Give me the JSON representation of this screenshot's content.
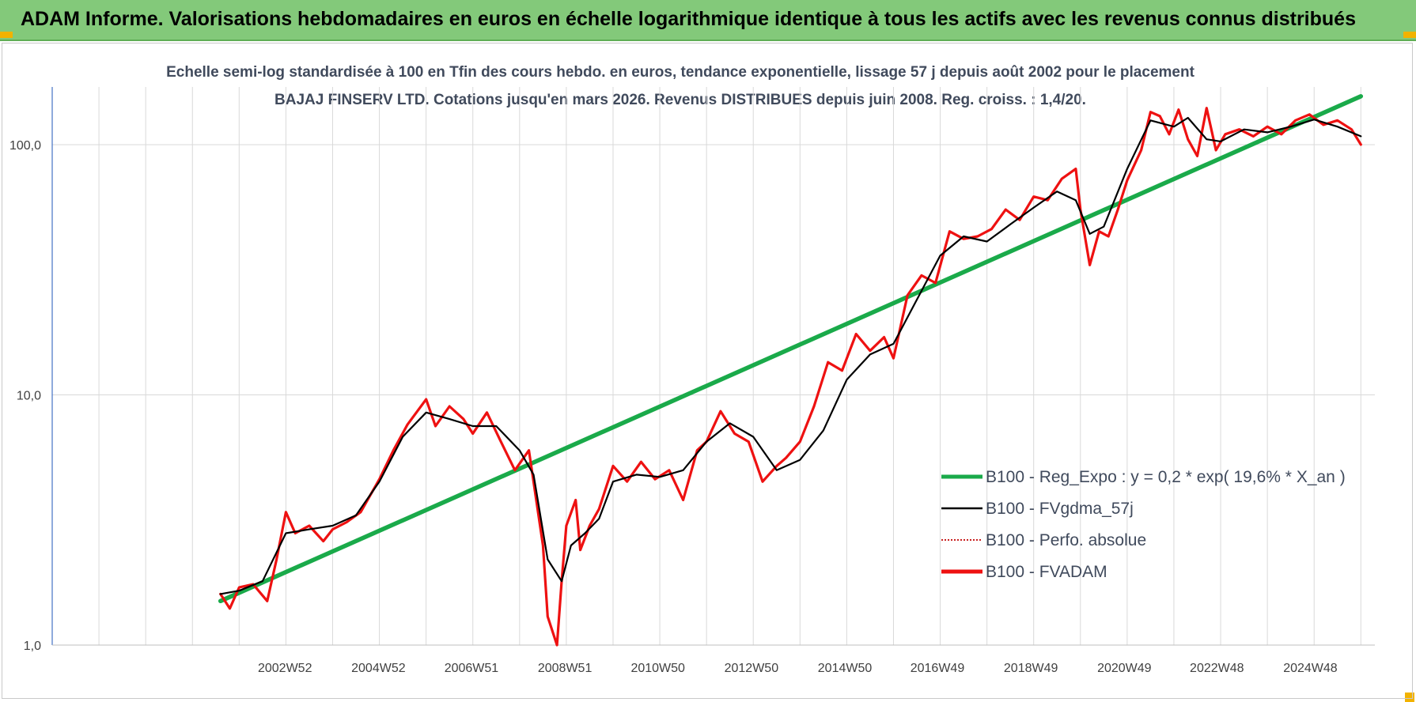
{
  "banner": {
    "title": "ADAM Informe. Valorisations hebdomadaires en euros en échelle logarithmique identique à tous les actifs avec les revenus connus distribués"
  },
  "colors": {
    "banner_bg": "#83c97a",
    "corner_accent": "#f2b200",
    "regression": "#1aaa4a",
    "smoothed": "#000000",
    "absolute_perf": "#c00000",
    "fvadam": "#ee1111",
    "grid": "#d9d9d9",
    "y_axis": "#4472c4"
  },
  "chart_data": {
    "type": "line",
    "title": "Echelle semi-log standardisée à 100 en Tfin des cours hebdo. en euros, tendance exponentielle, lissage 57 j depuis août 2002 pour le placement BAJAJ FINSERV  LTD. Cotations jusqu'en mars 2026. Revenus DISTRIBUES depuis juin 2008. Reg. croiss. : 1,4/20.",
    "y_scale": "log",
    "ylim": [
      1,
      170
    ],
    "xlim": [
      1998.0,
      2026.3
    ],
    "y_ticks": [
      {
        "value": 1,
        "label": "1,0"
      },
      {
        "value": 10,
        "label": "10,0"
      },
      {
        "value": 100,
        "label": "100,0"
      }
    ],
    "x_ticks": [
      {
        "value": 2002.98,
        "label": "2002W52"
      },
      {
        "value": 2004.98,
        "label": "2004W52"
      },
      {
        "value": 2006.97,
        "label": "2006W51"
      },
      {
        "value": 2008.97,
        "label": "2008W51"
      },
      {
        "value": 2010.96,
        "label": "2010W50"
      },
      {
        "value": 2012.96,
        "label": "2012W50"
      },
      {
        "value": 2014.96,
        "label": "2014W50"
      },
      {
        "value": 2016.94,
        "label": "2016W49"
      },
      {
        "value": 2018.94,
        "label": "2018W49"
      },
      {
        "value": 2020.94,
        "label": "2020W49"
      },
      {
        "value": 2022.92,
        "label": "2022W48"
      },
      {
        "value": 2024.92,
        "label": "2024W48"
      }
    ],
    "grid": true,
    "legend_position": "right",
    "series": [
      {
        "name": "B100 - Reg_Expo : y = 0,2 * exp( 19,6% *  X_an )",
        "key": "regression",
        "x": [
          2001.6,
          2026.0
        ],
        "y": [
          1.5,
          156
        ]
      },
      {
        "name": "B100 - FVgdma_57j",
        "key": "smoothed",
        "x": [
          2001.6,
          2002.0,
          2002.5,
          2003.0,
          2003.5,
          2004.0,
          2004.5,
          2005.0,
          2005.5,
          2006.0,
          2006.5,
          2007.0,
          2007.5,
          2008.0,
          2008.3,
          2008.6,
          2008.9,
          2009.1,
          2009.4,
          2009.7,
          2010.0,
          2010.5,
          2011.0,
          2011.5,
          2012.0,
          2012.5,
          2013.0,
          2013.5,
          2014.0,
          2014.5,
          2015.0,
          2015.5,
          2016.0,
          2016.5,
          2017.0,
          2017.5,
          2018.0,
          2018.5,
          2019.0,
          2019.5,
          2019.9,
          2020.2,
          2020.5,
          2021.0,
          2021.5,
          2022.0,
          2022.3,
          2022.7,
          2023.0,
          2023.5,
          2024.0,
          2024.5,
          2025.0,
          2025.5,
          2026.0
        ],
        "y": [
          1.6,
          1.65,
          1.8,
          2.8,
          2.9,
          3.0,
          3.3,
          4.5,
          6.8,
          8.5,
          8.0,
          7.5,
          7.5,
          6.0,
          4.8,
          2.2,
          1.8,
          2.5,
          2.8,
          3.2,
          4.5,
          4.8,
          4.7,
          5.0,
          6.5,
          7.7,
          6.8,
          5.0,
          5.5,
          7.2,
          11.5,
          14.5,
          16.0,
          24.0,
          36.0,
          43.0,
          41.0,
          48.0,
          56.0,
          65.0,
          60.0,
          44.0,
          47.0,
          80.0,
          125.0,
          118.0,
          128.0,
          105.0,
          103.0,
          115.0,
          112.0,
          118.0,
          126.0,
          118.0,
          108.0
        ]
      },
      {
        "name": "B100 - Perfo. absolue",
        "key": "absolute_perf",
        "x": [],
        "y": []
      },
      {
        "name": "B100 - FVADAM",
        "key": "fvadam",
        "x": [
          2001.6,
          2001.8,
          2002.0,
          2002.3,
          2002.6,
          2002.8,
          2003.0,
          2003.2,
          2003.5,
          2003.8,
          2004.0,
          2004.3,
          2004.6,
          2005.0,
          2005.3,
          2005.6,
          2006.0,
          2006.2,
          2006.5,
          2006.8,
          2007.0,
          2007.3,
          2007.6,
          2007.9,
          2008.2,
          2008.5,
          2008.6,
          2008.8,
          2008.9,
          2009.0,
          2009.2,
          2009.3,
          2009.5,
          2009.7,
          2010.0,
          2010.3,
          2010.6,
          2010.9,
          2011.2,
          2011.5,
          2011.8,
          2012.0,
          2012.3,
          2012.6,
          2012.9,
          2013.2,
          2013.5,
          2013.7,
          2014.0,
          2014.3,
          2014.6,
          2014.9,
          2015.2,
          2015.5,
          2015.8,
          2016.0,
          2016.3,
          2016.6,
          2016.9,
          2017.2,
          2017.5,
          2017.8,
          2018.1,
          2018.4,
          2018.7,
          2019.0,
          2019.3,
          2019.6,
          2019.9,
          2020.0,
          2020.2,
          2020.4,
          2020.6,
          2020.8,
          2021.0,
          2021.3,
          2021.5,
          2021.7,
          2021.9,
          2022.1,
          2022.3,
          2022.5,
          2022.7,
          2022.9,
          2023.1,
          2023.4,
          2023.7,
          2024.0,
          2024.3,
          2024.6,
          2024.9,
          2025.2,
          2025.5,
          2025.8,
          2026.0
        ],
        "y": [
          1.6,
          1.4,
          1.7,
          1.75,
          1.5,
          2.2,
          3.4,
          2.8,
          3.0,
          2.6,
          2.9,
          3.1,
          3.4,
          4.6,
          6.0,
          7.6,
          9.6,
          7.5,
          9.0,
          8.0,
          7.0,
          8.5,
          6.5,
          5.0,
          6.0,
          2.5,
          1.3,
          1.0,
          1.8,
          3.0,
          3.8,
          2.4,
          3.0,
          3.5,
          5.2,
          4.5,
          5.4,
          4.6,
          5.0,
          3.8,
          6.0,
          6.5,
          8.6,
          7.0,
          6.5,
          4.5,
          5.2,
          5.6,
          6.5,
          9.0,
          13.5,
          12.5,
          17.5,
          15.0,
          17.0,
          14.0,
          25.0,
          30.0,
          28.0,
          45.0,
          42.0,
          43.0,
          46.0,
          55.0,
          50.0,
          62.0,
          60.0,
          73.0,
          80.0,
          55.0,
          33.0,
          45.0,
          43.0,
          55.0,
          72.0,
          95.0,
          135.0,
          130.0,
          110.0,
          138.0,
          105.0,
          90.0,
          140.0,
          95.0,
          110.0,
          115.0,
          108.0,
          118.0,
          110.0,
          125.0,
          132.0,
          120.0,
          125.0,
          115.0,
          100.0
        ]
      }
    ]
  }
}
